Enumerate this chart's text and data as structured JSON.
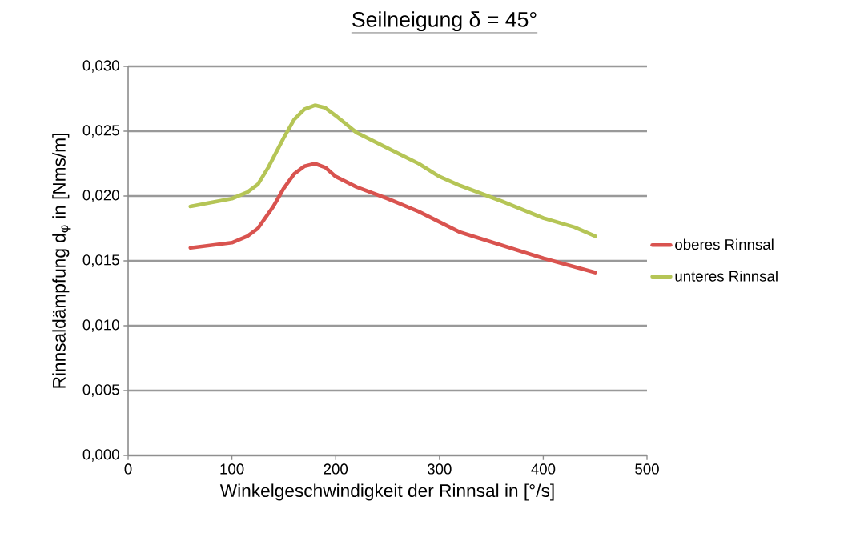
{
  "chart_data": {
    "type": "line",
    "title": "Seilneigung δ = 45°",
    "xlabel": "Winkelgeschwindigkeit der Rinnsal in [°/s]",
    "ylabel": "Rinnsaldämpfung d$_{φ}$ in [Nms/m]",
    "xlim": [
      0,
      500
    ],
    "xticks": [
      0,
      100,
      200,
      300,
      400,
      500
    ],
    "ylim": [
      0,
      0.03
    ],
    "yticks": [
      {
        "value": 0,
        "label": "0,000"
      },
      {
        "value": 0.005,
        "label": "0,005"
      },
      {
        "value": 0.01,
        "label": "0,010"
      },
      {
        "value": 0.015,
        "label": "0,015"
      },
      {
        "value": 0.02,
        "label": "0,020"
      },
      {
        "value": 0.025,
        "label": "0,025"
      },
      {
        "value": 0.03,
        "label": "0,030"
      }
    ],
    "grid": "y",
    "legend": "right",
    "marker": "none",
    "line_style": "solid",
    "series": [
      {
        "name": "oberes Rinnsal",
        "color": "#d9534f",
        "x": [
          60,
          80,
          100,
          115,
          125,
          140,
          150,
          160,
          170,
          180,
          190,
          200,
          220,
          250,
          280,
          320,
          360,
          400,
          450
        ],
        "values": [
          0.016,
          0.0162,
          0.0164,
          0.0169,
          0.0175,
          0.0192,
          0.0206,
          0.0217,
          0.0223,
          0.0225,
          0.0222,
          0.0215,
          0.0207,
          0.0198,
          0.0188,
          0.0172,
          0.0162,
          0.0152,
          0.0141
        ]
      },
      {
        "name": "unteres Rinnsal",
        "color": "#b5c556",
        "x": [
          60,
          80,
          100,
          115,
          125,
          135,
          150,
          160,
          170,
          180,
          190,
          200,
          220,
          250,
          280,
          300,
          320,
          360,
          400,
          430,
          450
        ],
        "values": [
          0.0192,
          0.0195,
          0.0198,
          0.0203,
          0.0209,
          0.0222,
          0.0245,
          0.0259,
          0.0267,
          0.027,
          0.0268,
          0.0262,
          0.0249,
          0.0237,
          0.0225,
          0.0215,
          0.0208,
          0.0196,
          0.0183,
          0.0176,
          0.0169
        ]
      }
    ]
  }
}
